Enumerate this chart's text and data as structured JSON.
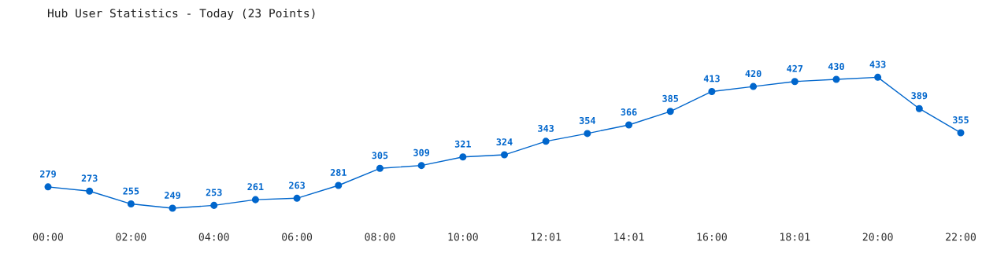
{
  "chart_data": {
    "type": "line",
    "title": "Hub User Statistics - Today (23 Points)",
    "categories": [
      "00:00",
      null,
      "02:00",
      null,
      "04:00",
      null,
      "06:00",
      null,
      "08:00",
      null,
      "10:00",
      null,
      "12:01",
      null,
      "14:01",
      null,
      "16:00",
      null,
      "18:01",
      null,
      "20:00",
      null,
      "22:00"
    ],
    "series": [
      {
        "color": "#0066cc",
        "values": [
          279,
          273,
          255,
          249,
          253,
          261,
          263,
          281,
          305,
          309,
          321,
          324,
          343,
          354,
          366,
          385,
          413,
          420,
          427,
          430,
          433,
          389,
          355
        ]
      }
    ],
    "data_labels": true,
    "marker": "circle",
    "line_style": "solid",
    "grid": false,
    "legend": false
  }
}
